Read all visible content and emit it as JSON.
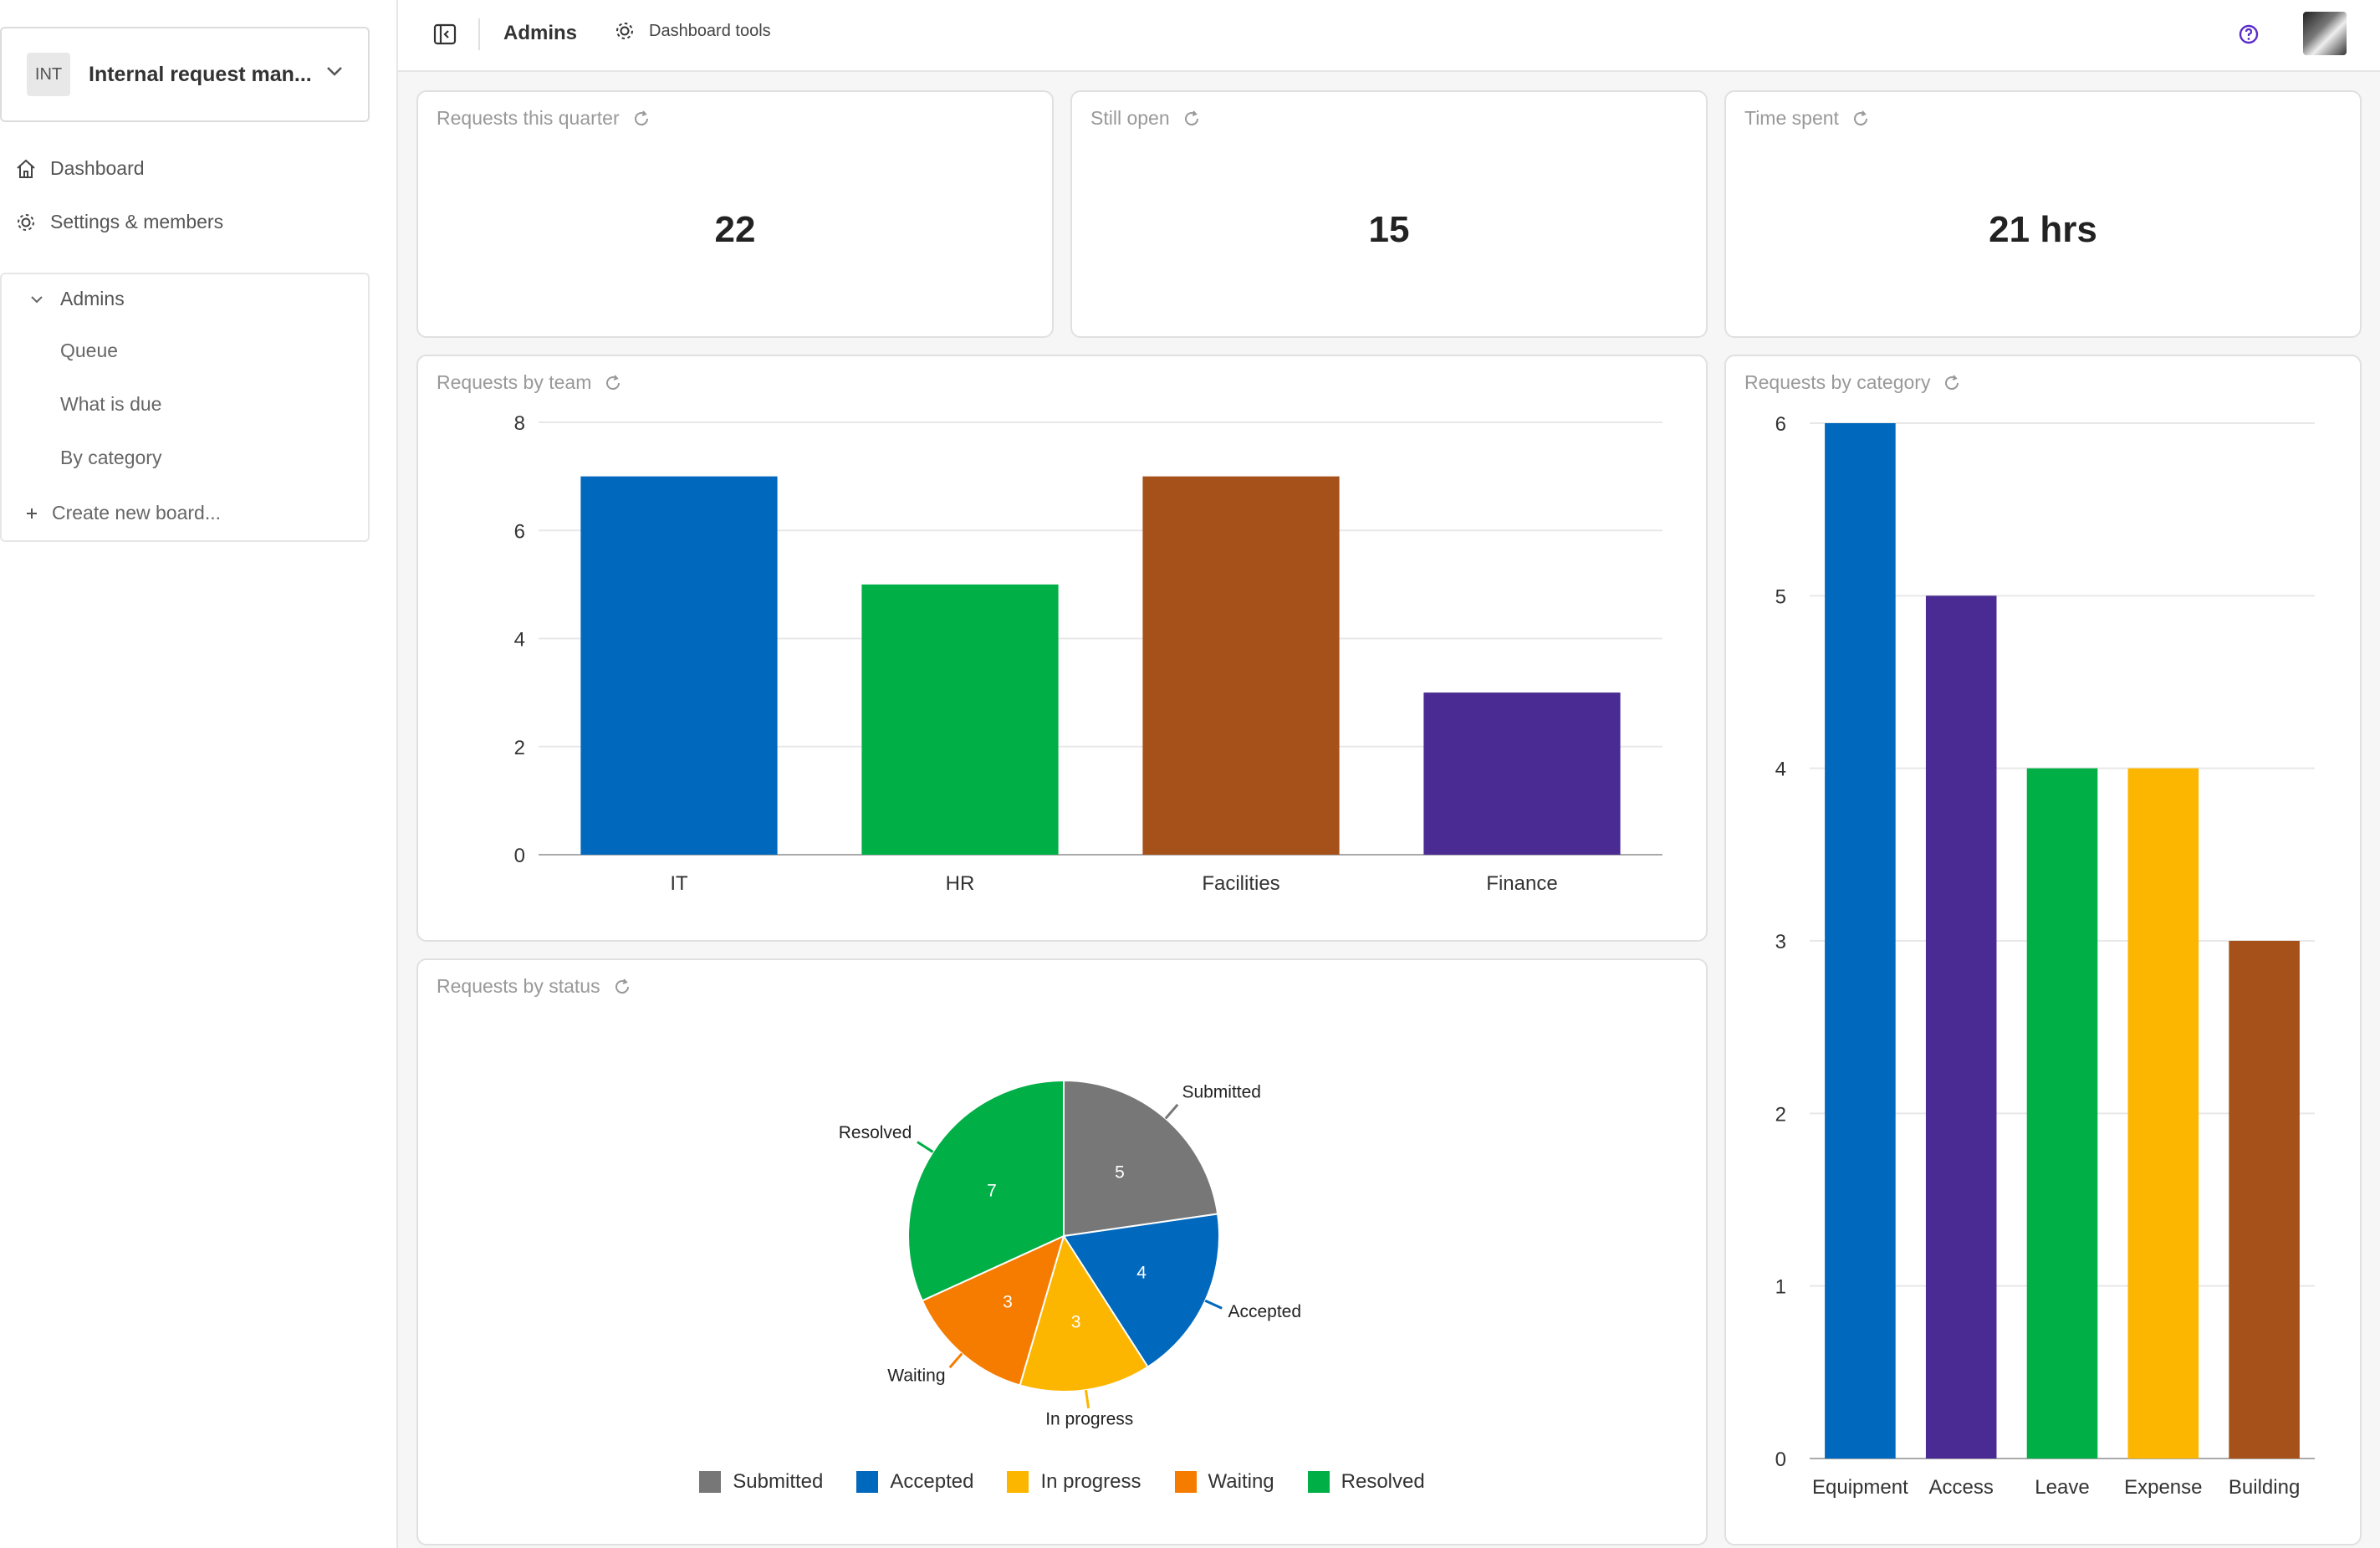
{
  "workspace": {
    "badge": "INT",
    "name": "Internal request man..."
  },
  "nav": {
    "dashboard": "Dashboard",
    "settings": "Settings & members"
  },
  "boards": {
    "group_label": "Admins",
    "items": [
      {
        "label": "Queue"
      },
      {
        "label": "What is due"
      },
      {
        "label": "By category"
      }
    ],
    "create_label": "Create new board..."
  },
  "topbar": {
    "title": "Admins",
    "tools_label": "Dashboard tools"
  },
  "kpis": [
    {
      "title": "Requests this quarter",
      "value": "22"
    },
    {
      "title": "Still open",
      "value": "15"
    },
    {
      "title": "Time spent",
      "value": "21 hrs"
    }
  ],
  "colors": {
    "blue": "#0068BD",
    "green": "#00AF46",
    "brown": "#A6501A",
    "purple": "#4A2A93",
    "yellow": "#FDB600",
    "orange": "#F67C00",
    "gray": "#777777",
    "help": "#5B2BC9"
  },
  "charts": {
    "team_title": "Requests by team",
    "category_title": "Requests by category",
    "status_title": "Requests by status"
  },
  "chart_data": [
    {
      "type": "bar",
      "title": "Requests by team",
      "categories": [
        "IT",
        "HR",
        "Facilities",
        "Finance"
      ],
      "values": [
        7,
        5,
        7,
        3
      ],
      "colors": [
        "#0068BD",
        "#00AF46",
        "#A6501A",
        "#4A2A93"
      ],
      "yticks": [
        0,
        2,
        4,
        6,
        8
      ],
      "ylim": [
        0,
        8
      ],
      "grid": true
    },
    {
      "type": "bar",
      "title": "Requests by category",
      "categories": [
        "Equipment",
        "Access",
        "Leave",
        "Expense",
        "Building"
      ],
      "values": [
        6,
        5,
        4,
        4,
        3
      ],
      "colors": [
        "#0068BD",
        "#4A2A93",
        "#00AF46",
        "#FDB600",
        "#A6501A"
      ],
      "yticks": [
        0,
        1,
        2,
        3,
        4,
        5,
        6
      ],
      "ylim": [
        0,
        6
      ],
      "grid": true
    },
    {
      "type": "pie",
      "title": "Requests by status",
      "labels": [
        "Submitted",
        "Accepted",
        "In progress",
        "Waiting",
        "Resolved"
      ],
      "values": [
        5,
        4,
        3,
        3,
        7
      ],
      "colors": [
        "#777777",
        "#0068BD",
        "#FDB600",
        "#F67C00",
        "#00AF46"
      ],
      "legend": "bottom"
    }
  ]
}
